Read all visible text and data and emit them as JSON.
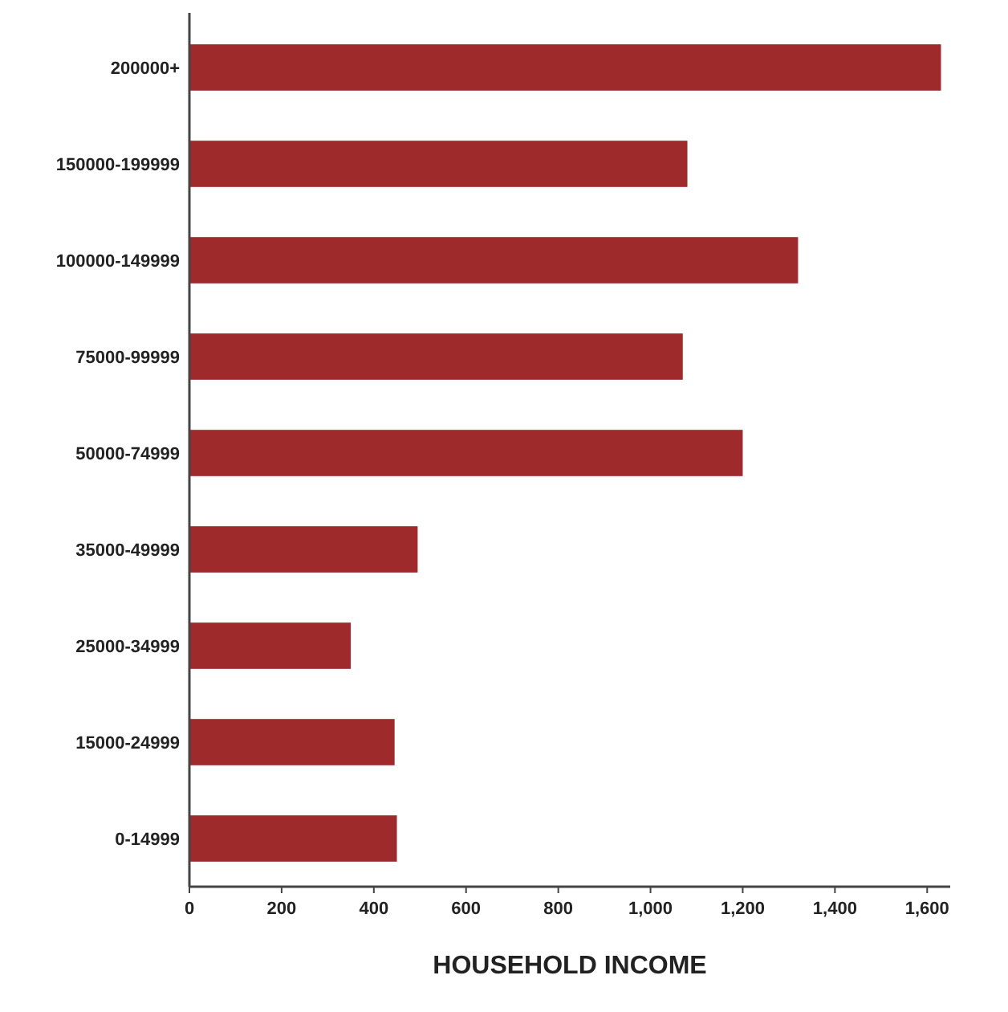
{
  "chart_data": {
    "type": "bar",
    "orientation": "horizontal",
    "xlabel": "HOUSEHOLD INCOME",
    "categories": [
      "200000+",
      "150000-199999",
      "100000-149999",
      "75000-99999",
      "50000-74999",
      "35000-49999",
      "25000-34999",
      "15000-24999",
      "0-14999"
    ],
    "values": [
      1630,
      1080,
      1320,
      1070,
      1200,
      495,
      350,
      445,
      450
    ],
    "color": "#9e2a2b",
    "xlim": [
      0,
      1650
    ],
    "xticks": [
      0,
      200,
      400,
      600,
      800,
      {
        "value": 1000,
        "label": "1,000"
      },
      {
        "value": 1200,
        "label": "1,200"
      },
      {
        "value": 1400,
        "label": "1,400"
      },
      {
        "value": 1600,
        "label": "1,600"
      }
    ],
    "grid": false
  }
}
